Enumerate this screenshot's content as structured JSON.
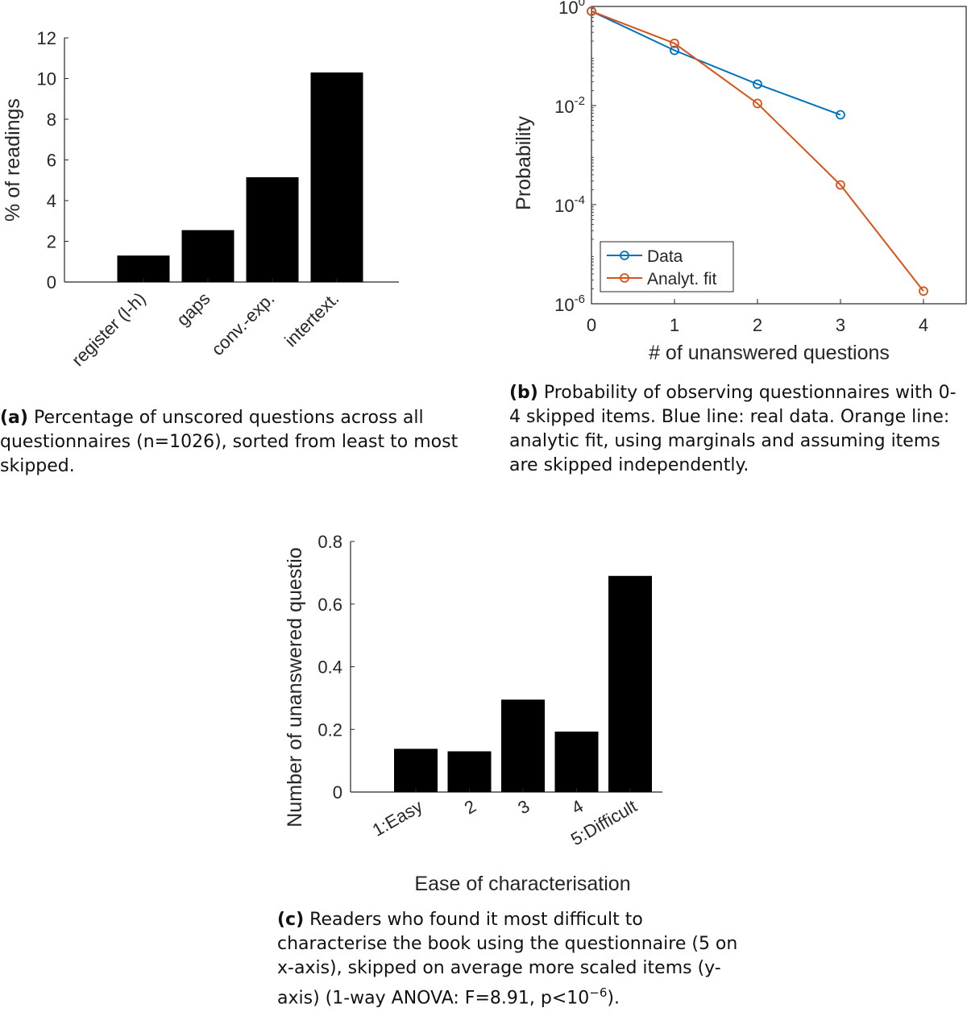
{
  "chart_data": [
    {
      "id": "a",
      "type": "bar",
      "categories": [
        "register (l-h)",
        "gaps",
        "conv.-exp.",
        "intertext."
      ],
      "values": [
        1.3,
        2.55,
        5.15,
        10.3
      ],
      "ylabel": "% of readings",
      "ylim": [
        0,
        12
      ],
      "yticks": [
        "0",
        "2",
        "4",
        "6",
        "8",
        "10",
        "12"
      ],
      "grid": false,
      "caption": {
        "label": "(a)",
        "text": "Percentage of unscored questions across all questionnaires (n=1026), sorted from least to most skipped."
      }
    },
    {
      "id": "b",
      "type": "line",
      "yscale": "log",
      "xlabel": "# of unanswered questions",
      "ylabel": "Probability",
      "xlim": [
        0,
        4
      ],
      "ylim": [
        1e-06,
        1
      ],
      "xticks": [
        "0",
        "1",
        "2",
        "3",
        "4"
      ],
      "yticks": [
        {
          "base": "10",
          "exp": "-6",
          "value": 1e-06
        },
        {
          "base": "10",
          "exp": "-4",
          "value": 0.0001
        },
        {
          "base": "10",
          "exp": "-2",
          "value": 0.01
        },
        {
          "base": "10",
          "exp": "0",
          "value": 1
        }
      ],
      "legend_position": "bottom-left",
      "grid": false,
      "series": [
        {
          "name": "Data",
          "color": "#0072BD",
          "x": [
            0,
            1,
            2,
            3
          ],
          "y": [
            0.8,
            0.13,
            0.027,
            0.0065
          ]
        },
        {
          "name": "Analyt. fit",
          "color": "#D95319",
          "x": [
            0,
            1,
            2,
            3,
            4
          ],
          "y": [
            0.8,
            0.18,
            0.011,
            0.00025,
            1.8e-06
          ]
        }
      ],
      "caption": {
        "label": "(b)",
        "text": "Probability of observing questionnaires with 0-4 skipped items. Blue line: real data. Orange line: analytic fit, using marginals and assuming items are skipped independently."
      }
    },
    {
      "id": "c",
      "type": "bar",
      "categories": [
        "1:Easy",
        "2",
        "3",
        "4",
        "5:Difficult"
      ],
      "values": [
        0.138,
        0.13,
        0.295,
        0.193,
        0.69
      ],
      "xlabel": "Ease of characterisation",
      "ylabel": "Number of unanswered questio",
      "ylim": [
        0,
        0.8
      ],
      "yticks": [
        "0",
        "0.2",
        "0.4",
        "0.6",
        "0.8"
      ],
      "grid": false,
      "caption": {
        "label": "(c)",
        "text": "Readers who found it most difficult to characterise the book using the questionnaire (5 on x-axis), skipped on average more scaled items (y-axis) (1-way ANOVA: F=8.91, p<10",
        "sup": "−6",
        "tail": ")."
      }
    }
  ]
}
